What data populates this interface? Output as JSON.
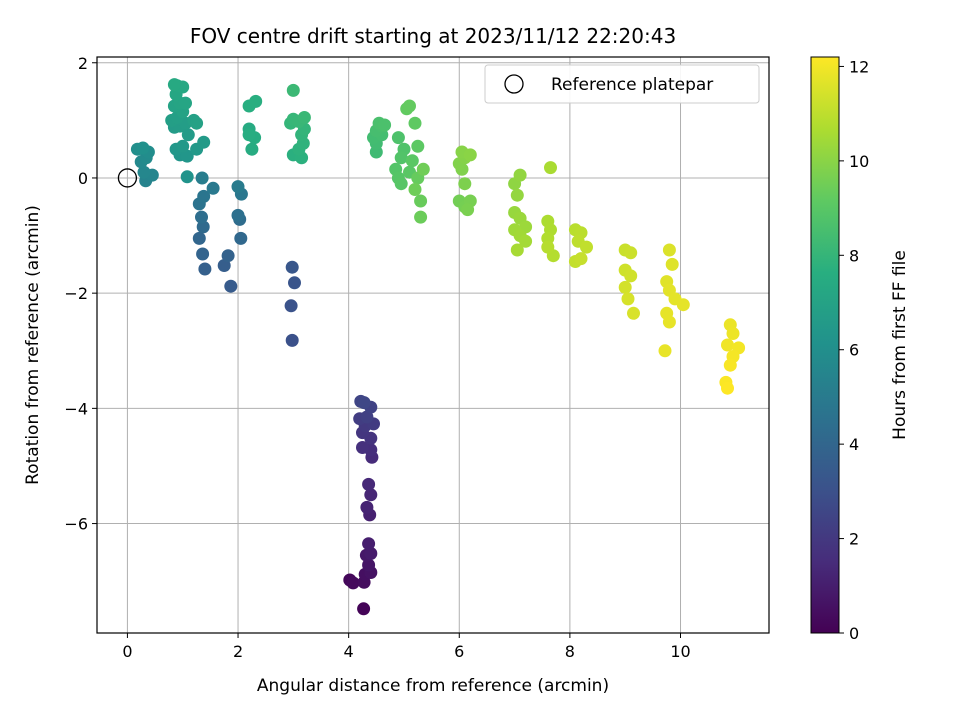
{
  "chart_data": {
    "type": "scatter",
    "title": "FOV centre drift starting at 2023/11/12 22:20:43",
    "xlabel": "Angular distance from reference (arcmin)",
    "ylabel": "Rotation from reference (arcmin)",
    "xlim": [
      -0.55,
      11.6
    ],
    "ylim": [
      -7.9,
      2.1
    ],
    "xticks": [
      0,
      2,
      4,
      6,
      8,
      10
    ],
    "yticks": [
      -6,
      -4,
      -2,
      0,
      2
    ],
    "grid": true,
    "legend": {
      "placement": "top-right",
      "entries": [
        "Reference platepar"
      ]
    },
    "reference_point": {
      "x": 0,
      "y": 0
    },
    "colorbar": {
      "label": "Hours from first FF file",
      "range": [
        0,
        12.2
      ],
      "ticks": [
        0,
        2,
        4,
        6,
        8,
        10,
        12
      ],
      "colormap": "viridis"
    },
    "points": [
      {
        "x": 4.27,
        "y": -7.48,
        "c": 0.1
      },
      {
        "x": 4.02,
        "y": -6.98,
        "c": 0.2
      },
      {
        "x": 4.08,
        "y": -7.03,
        "c": 0.3
      },
      {
        "x": 4.28,
        "y": -7.02,
        "c": 0.4
      },
      {
        "x": 4.3,
        "y": -6.88,
        "c": 0.5
      },
      {
        "x": 4.4,
        "y": -6.85,
        "c": 0.6
      },
      {
        "x": 4.36,
        "y": -6.72,
        "c": 0.7
      },
      {
        "x": 4.32,
        "y": -6.55,
        "c": 0.8
      },
      {
        "x": 4.4,
        "y": -6.52,
        "c": 0.9
      },
      {
        "x": 4.36,
        "y": -6.35,
        "c": 1.0
      },
      {
        "x": 4.38,
        "y": -5.85,
        "c": 1.1
      },
      {
        "x": 4.33,
        "y": -5.72,
        "c": 1.2
      },
      {
        "x": 4.4,
        "y": -5.5,
        "c": 1.3
      },
      {
        "x": 4.36,
        "y": -5.32,
        "c": 1.4
      },
      {
        "x": 4.42,
        "y": -4.85,
        "c": 1.5
      },
      {
        "x": 4.4,
        "y": -4.72,
        "c": 1.6
      },
      {
        "x": 4.25,
        "y": -4.68,
        "c": 1.7
      },
      {
        "x": 4.4,
        "y": -4.52,
        "c": 1.8
      },
      {
        "x": 4.25,
        "y": -4.42,
        "c": 1.9
      },
      {
        "x": 4.3,
        "y": -4.3,
        "c": 2.0
      },
      {
        "x": 4.45,
        "y": -4.27,
        "c": 2.1
      },
      {
        "x": 4.2,
        "y": -4.18,
        "c": 2.2
      },
      {
        "x": 4.33,
        "y": -4.15,
        "c": 2.3
      },
      {
        "x": 4.4,
        "y": -3.98,
        "c": 2.4
      },
      {
        "x": 4.22,
        "y": -3.88,
        "c": 2.5
      },
      {
        "x": 4.28,
        "y": -3.9,
        "c": 2.6
      },
      {
        "x": 2.98,
        "y": -2.82,
        "c": 3.0
      },
      {
        "x": 2.96,
        "y": -2.22,
        "c": 3.1
      },
      {
        "x": 3.02,
        "y": -1.82,
        "c": 3.2
      },
      {
        "x": 2.98,
        "y": -1.55,
        "c": 3.3
      },
      {
        "x": 1.87,
        "y": -1.88,
        "c": 3.5
      },
      {
        "x": 1.75,
        "y": -1.52,
        "c": 3.6
      },
      {
        "x": 1.4,
        "y": -1.58,
        "c": 3.7
      },
      {
        "x": 1.82,
        "y": -1.35,
        "c": 3.8
      },
      {
        "x": 1.36,
        "y": -1.32,
        "c": 3.9
      },
      {
        "x": 1.3,
        "y": -1.05,
        "c": 4.0
      },
      {
        "x": 2.05,
        "y": -1.05,
        "c": 4.1
      },
      {
        "x": 1.37,
        "y": -0.85,
        "c": 4.2
      },
      {
        "x": 2.03,
        "y": -0.72,
        "c": 4.3
      },
      {
        "x": 1.34,
        "y": -0.68,
        "c": 4.4
      },
      {
        "x": 2.0,
        "y": -0.65,
        "c": 4.5
      },
      {
        "x": 1.3,
        "y": -0.45,
        "c": 4.6
      },
      {
        "x": 1.38,
        "y": -0.32,
        "c": 4.7
      },
      {
        "x": 2.06,
        "y": -0.28,
        "c": 4.8
      },
      {
        "x": 1.55,
        "y": -0.18,
        "c": 4.9
      },
      {
        "x": 2.0,
        "y": -0.15,
        "c": 5.0
      },
      {
        "x": 1.35,
        "y": 0.0,
        "c": 5.1
      },
      {
        "x": 0.33,
        "y": -0.05,
        "c": 5.4
      },
      {
        "x": 0.45,
        "y": 0.05,
        "c": 5.5
      },
      {
        "x": 0.3,
        "y": 0.1,
        "c": 5.6
      },
      {
        "x": 0.25,
        "y": 0.28,
        "c": 5.7
      },
      {
        "x": 0.34,
        "y": 0.35,
        "c": 5.8
      },
      {
        "x": 0.38,
        "y": 0.45,
        "c": 5.9
      },
      {
        "x": 0.18,
        "y": 0.5,
        "c": 6.0
      },
      {
        "x": 0.28,
        "y": 0.52,
        "c": 6.1
      },
      {
        "x": 1.08,
        "y": 0.02,
        "c": 6.2
      },
      {
        "x": 0.95,
        "y": 0.4,
        "c": 6.3
      },
      {
        "x": 1.08,
        "y": 0.38,
        "c": 6.35
      },
      {
        "x": 0.88,
        "y": 0.5,
        "c": 6.4
      },
      {
        "x": 1.0,
        "y": 0.55,
        "c": 6.45
      },
      {
        "x": 1.25,
        "y": 0.5,
        "c": 6.5
      },
      {
        "x": 1.38,
        "y": 0.62,
        "c": 6.55
      },
      {
        "x": 1.1,
        "y": 0.75,
        "c": 6.6
      },
      {
        "x": 0.85,
        "y": 0.88,
        "c": 6.65
      },
      {
        "x": 0.95,
        "y": 0.9,
        "c": 6.7
      },
      {
        "x": 1.05,
        "y": 0.95,
        "c": 6.75
      },
      {
        "x": 0.8,
        "y": 1.0,
        "c": 6.8
      },
      {
        "x": 0.9,
        "y": 1.05,
        "c": 6.85
      },
      {
        "x": 1.2,
        "y": 1.0,
        "c": 6.9
      },
      {
        "x": 1.25,
        "y": 0.95,
        "c": 6.95
      },
      {
        "x": 1.0,
        "y": 1.15,
        "c": 7.0
      },
      {
        "x": 0.85,
        "y": 1.25,
        "c": 7.05
      },
      {
        "x": 0.95,
        "y": 1.3,
        "c": 7.1
      },
      {
        "x": 1.05,
        "y": 1.3,
        "c": 7.15
      },
      {
        "x": 0.88,
        "y": 1.45,
        "c": 7.2
      },
      {
        "x": 0.9,
        "y": 1.6,
        "c": 7.25
      },
      {
        "x": 1.0,
        "y": 1.58,
        "c": 7.3
      },
      {
        "x": 0.85,
        "y": 1.62,
        "c": 7.35
      },
      {
        "x": 2.2,
        "y": 0.85,
        "c": 7.4
      },
      {
        "x": 2.25,
        "y": 0.5,
        "c": 7.45
      },
      {
        "x": 2.3,
        "y": 0.7,
        "c": 7.5
      },
      {
        "x": 2.2,
        "y": 0.75,
        "c": 7.55
      },
      {
        "x": 2.2,
        "y": 1.25,
        "c": 7.6
      },
      {
        "x": 2.32,
        "y": 1.33,
        "c": 7.65
      },
      {
        "x": 3.0,
        "y": 0.4,
        "c": 7.7
      },
      {
        "x": 3.15,
        "y": 0.35,
        "c": 7.75
      },
      {
        "x": 3.1,
        "y": 0.5,
        "c": 7.8
      },
      {
        "x": 3.18,
        "y": 0.6,
        "c": 7.85
      },
      {
        "x": 3.15,
        "y": 0.75,
        "c": 7.9
      },
      {
        "x": 3.2,
        "y": 0.85,
        "c": 7.95
      },
      {
        "x": 2.95,
        "y": 0.95,
        "c": 8.0
      },
      {
        "x": 3.0,
        "y": 1.02,
        "c": 8.05
      },
      {
        "x": 3.1,
        "y": 0.98,
        "c": 8.1
      },
      {
        "x": 3.2,
        "y": 1.05,
        "c": 8.15
      },
      {
        "x": 3.0,
        "y": 1.52,
        "c": 8.2
      },
      {
        "x": 4.5,
        "y": 0.45,
        "c": 8.3
      },
      {
        "x": 4.5,
        "y": 0.6,
        "c": 8.35
      },
      {
        "x": 4.45,
        "y": 0.7,
        "c": 8.4
      },
      {
        "x": 4.6,
        "y": 0.75,
        "c": 8.45
      },
      {
        "x": 4.5,
        "y": 0.82,
        "c": 8.5
      },
      {
        "x": 4.6,
        "y": 0.9,
        "c": 8.55
      },
      {
        "x": 4.55,
        "y": 0.95,
        "c": 8.6
      },
      {
        "x": 4.65,
        "y": 0.92,
        "c": 8.65
      },
      {
        "x": 4.9,
        "y": 0.7,
        "c": 8.7
      },
      {
        "x": 5.0,
        "y": 0.5,
        "c": 8.75
      },
      {
        "x": 4.95,
        "y": 0.35,
        "c": 8.8
      },
      {
        "x": 4.85,
        "y": 0.15,
        "c": 8.85
      },
      {
        "x": 4.9,
        "y": 0.0,
        "c": 8.9
      },
      {
        "x": 4.95,
        "y": -0.1,
        "c": 8.95
      },
      {
        "x": 5.1,
        "y": 0.1,
        "c": 9.0
      },
      {
        "x": 5.15,
        "y": 0.3,
        "c": 9.05
      },
      {
        "x": 5.25,
        "y": 0.55,
        "c": 9.1
      },
      {
        "x": 5.2,
        "y": 0.95,
        "c": 9.15
      },
      {
        "x": 5.05,
        "y": 1.2,
        "c": 9.2
      },
      {
        "x": 5.1,
        "y": 1.25,
        "c": 9.25
      },
      {
        "x": 5.25,
        "y": 0.0,
        "c": 9.3
      },
      {
        "x": 5.3,
        "y": -0.4,
        "c": 9.35
      },
      {
        "x": 5.3,
        "y": -0.68,
        "c": 9.4
      },
      {
        "x": 5.2,
        "y": -0.2,
        "c": 9.45
      },
      {
        "x": 5.35,
        "y": 0.15,
        "c": 9.5
      },
      {
        "x": 6.0,
        "y": -0.4,
        "c": 9.55
      },
      {
        "x": 6.1,
        "y": -0.5,
        "c": 9.6
      },
      {
        "x": 6.2,
        "y": -0.4,
        "c": 9.65
      },
      {
        "x": 6.15,
        "y": -0.55,
        "c": 9.7
      },
      {
        "x": 6.1,
        "y": -0.1,
        "c": 9.75
      },
      {
        "x": 6.05,
        "y": 0.15,
        "c": 9.8
      },
      {
        "x": 6.0,
        "y": 0.25,
        "c": 9.85
      },
      {
        "x": 6.1,
        "y": 0.35,
        "c": 9.9
      },
      {
        "x": 6.05,
        "y": 0.45,
        "c": 9.95
      },
      {
        "x": 6.2,
        "y": 0.4,
        "c": 10.0
      },
      {
        "x": 7.0,
        "y": -0.1,
        "c": 10.1
      },
      {
        "x": 7.1,
        "y": 0.05,
        "c": 10.15
      },
      {
        "x": 7.05,
        "y": -0.3,
        "c": 10.2
      },
      {
        "x": 7.0,
        "y": -0.6,
        "c": 10.25
      },
      {
        "x": 7.1,
        "y": -0.7,
        "c": 10.3
      },
      {
        "x": 7.2,
        "y": -0.85,
        "c": 10.35
      },
      {
        "x": 7.0,
        "y": -0.9,
        "c": 10.4
      },
      {
        "x": 7.1,
        "y": -1.0,
        "c": 10.45
      },
      {
        "x": 7.2,
        "y": -1.1,
        "c": 10.5
      },
      {
        "x": 7.05,
        "y": -1.25,
        "c": 10.55
      },
      {
        "x": 7.65,
        "y": 0.18,
        "c": 10.6
      },
      {
        "x": 7.6,
        "y": -0.75,
        "c": 10.65
      },
      {
        "x": 7.65,
        "y": -0.9,
        "c": 10.7
      },
      {
        "x": 7.6,
        "y": -1.05,
        "c": 10.75
      },
      {
        "x": 7.7,
        "y": -1.35,
        "c": 10.8
      },
      {
        "x": 7.6,
        "y": -1.2,
        "c": 10.85
      },
      {
        "x": 8.1,
        "y": -0.9,
        "c": 10.9
      },
      {
        "x": 8.2,
        "y": -0.95,
        "c": 10.95
      },
      {
        "x": 8.15,
        "y": -1.1,
        "c": 11.0
      },
      {
        "x": 8.3,
        "y": -1.2,
        "c": 11.05
      },
      {
        "x": 8.1,
        "y": -1.45,
        "c": 11.1
      },
      {
        "x": 8.2,
        "y": -1.4,
        "c": 11.15
      },
      {
        "x": 9.0,
        "y": -1.25,
        "c": 11.2
      },
      {
        "x": 9.1,
        "y": -1.3,
        "c": 11.25
      },
      {
        "x": 9.0,
        "y": -1.6,
        "c": 11.3
      },
      {
        "x": 9.1,
        "y": -1.7,
        "c": 11.35
      },
      {
        "x": 9.0,
        "y": -1.9,
        "c": 11.4
      },
      {
        "x": 9.05,
        "y": -2.1,
        "c": 11.45
      },
      {
        "x": 9.15,
        "y": -2.35,
        "c": 11.5
      },
      {
        "x": 9.8,
        "y": -1.25,
        "c": 11.55
      },
      {
        "x": 9.85,
        "y": -1.5,
        "c": 11.6
      },
      {
        "x": 9.75,
        "y": -1.8,
        "c": 11.65
      },
      {
        "x": 9.8,
        "y": -1.95,
        "c": 11.7
      },
      {
        "x": 9.9,
        "y": -2.1,
        "c": 11.72
      },
      {
        "x": 10.05,
        "y": -2.2,
        "c": 11.74
      },
      {
        "x": 9.75,
        "y": -2.35,
        "c": 11.76
      },
      {
        "x": 9.8,
        "y": -2.5,
        "c": 11.78
      },
      {
        "x": 9.72,
        "y": -3.0,
        "c": 11.8
      },
      {
        "x": 10.9,
        "y": -2.55,
        "c": 11.85
      },
      {
        "x": 10.95,
        "y": -2.7,
        "c": 11.9
      },
      {
        "x": 10.85,
        "y": -2.9,
        "c": 11.95
      },
      {
        "x": 11.05,
        "y": -2.95,
        "c": 12.0
      },
      {
        "x": 10.95,
        "y": -3.1,
        "c": 12.05
      },
      {
        "x": 10.9,
        "y": -3.25,
        "c": 12.1
      },
      {
        "x": 10.82,
        "y": -3.55,
        "c": 12.15
      },
      {
        "x": 10.85,
        "y": -3.65,
        "c": 12.2
      }
    ]
  }
}
